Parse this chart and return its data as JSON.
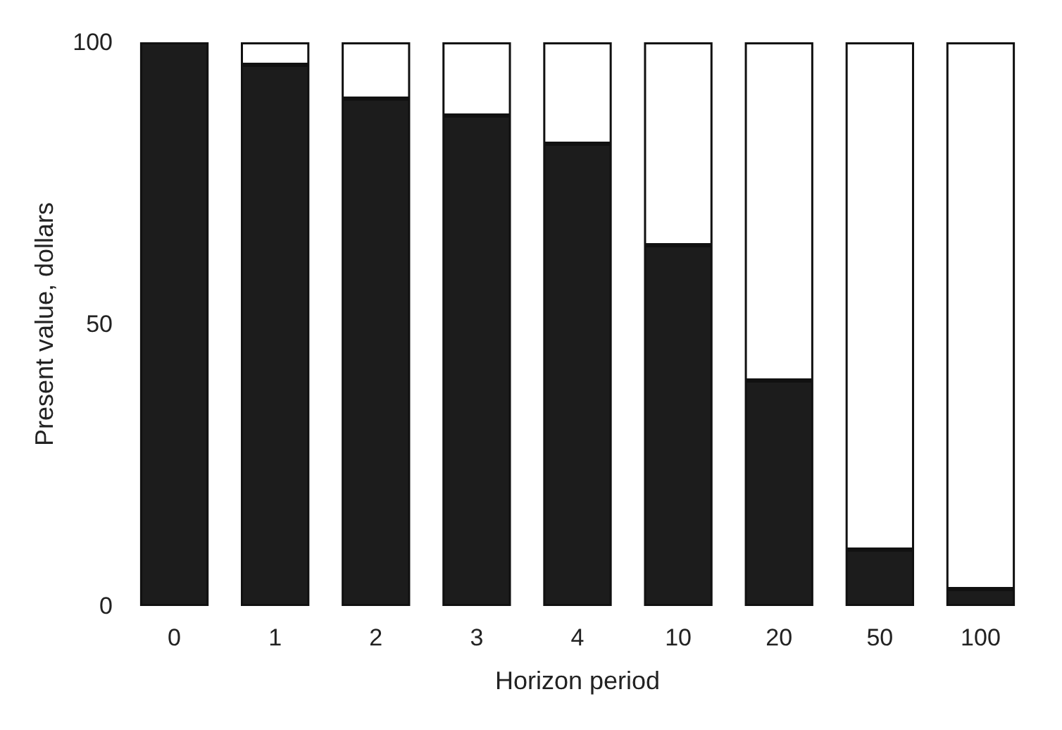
{
  "chart_data": {
    "type": "bar",
    "stacked": true,
    "xlabel": "Horizon period",
    "ylabel": "Present value, dollars",
    "categories": [
      "0",
      "1",
      "2",
      "3",
      "4",
      "10",
      "20",
      "50",
      "100"
    ],
    "series": [
      {
        "color": "#1c1c1c",
        "values": [
          100,
          96,
          90,
          87,
          82,
          64,
          40,
          10,
          3
        ]
      },
      {
        "color": "#ffffff",
        "values": [
          0,
          4,
          10,
          13,
          18,
          36,
          60,
          90,
          97
        ]
      }
    ],
    "ylim": [
      0,
      100
    ],
    "yticks": [
      0,
      50,
      100
    ],
    "grid": false
  }
}
